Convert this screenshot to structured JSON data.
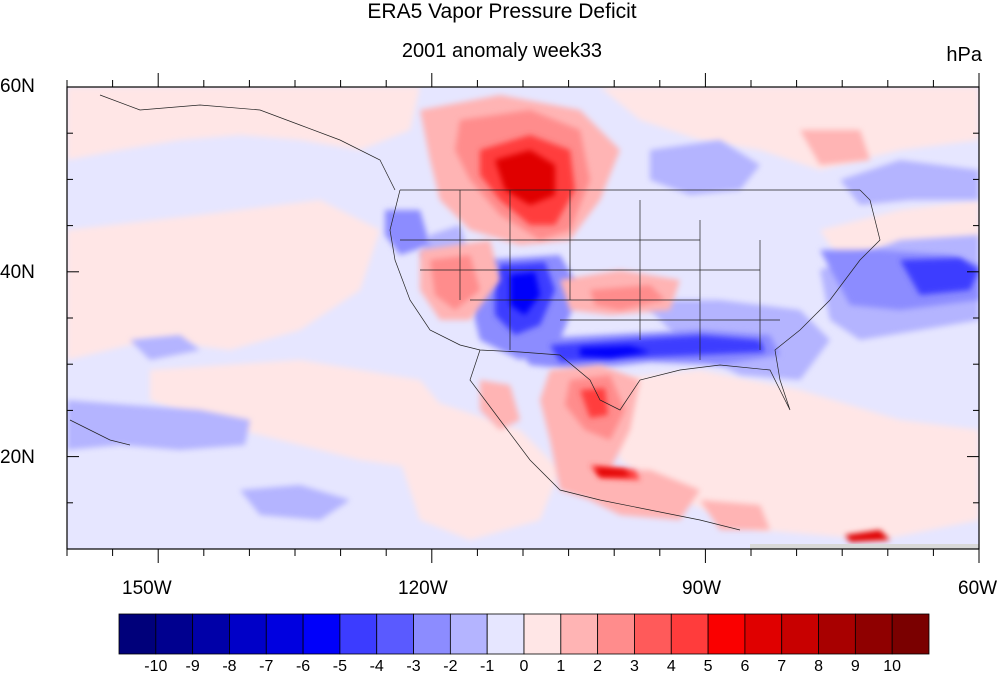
{
  "title": "ERA5 Vapor Pressure Deficit",
  "subtitle": "2001 anomaly week33",
  "units": "hPa",
  "map": {
    "projection": "cylindrical equidistant",
    "lon_range": [
      -160,
      -60
    ],
    "lat_range": [
      10,
      60
    ],
    "lat_labels": [
      "60N",
      "40N",
      "20N"
    ],
    "lon_labels": [
      "150W",
      "120W",
      "90W",
      "60W"
    ],
    "features": "coastlines, country borders, US state borders",
    "field": "vapor pressure deficit anomaly"
  },
  "colorbar": {
    "tick_labels": [
      "-10",
      "-9",
      "-8",
      "-7",
      "-6",
      "-5",
      "-4",
      "-3",
      "-2",
      "-1",
      "0",
      "1",
      "2",
      "3",
      "4",
      "5",
      "6",
      "7",
      "8",
      "9",
      "10"
    ],
    "colors": [
      "#00007a",
      "#00008f",
      "#0000a8",
      "#0000c8",
      "#0000e0",
      "#0000fa",
      "#3c3cff",
      "#5a5aff",
      "#8c8cff",
      "#b4b4ff",
      "#e6e6ff",
      "#ffe6e6",
      "#ffb4b4",
      "#ff8c8c",
      "#ff5a5a",
      "#ff3c3c",
      "#fa0000",
      "#e00000",
      "#c80000",
      "#a80000",
      "#8f0000",
      "#7a0000"
    ]
  }
}
